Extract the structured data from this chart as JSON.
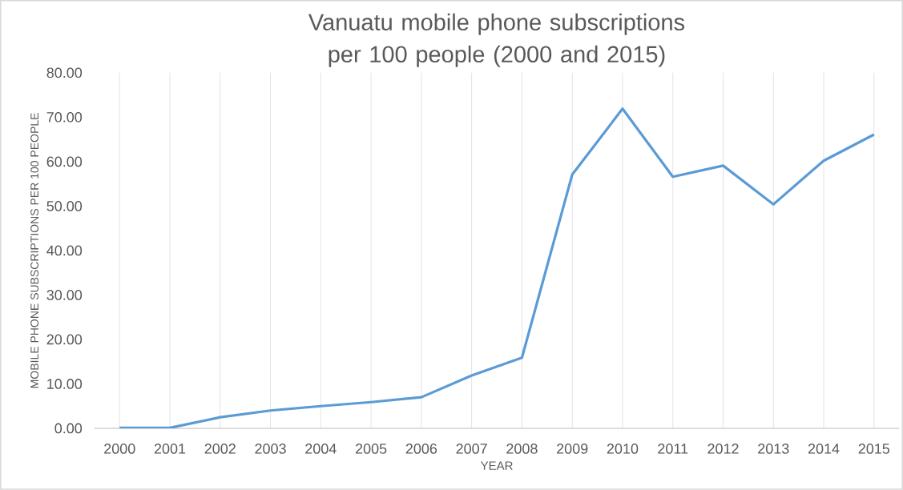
{
  "chart_data": {
    "type": "line",
    "title": "Vanuatu mobile phone subscriptions per 100  people (2000 and 2015)",
    "xlabel": "YEAR",
    "ylabel": "MOBILE PHONE SUBSCRIPTIONS PER 100 PEOPLE",
    "categories": [
      "2000",
      "2001",
      "2002",
      "2003",
      "2004",
      "2005",
      "2006",
      "2007",
      "2008",
      "2009",
      "2010",
      "2011",
      "2012",
      "2013",
      "2014",
      "2015"
    ],
    "series": [
      {
        "color": "#5b9bd5",
        "values": [
          0.1,
          0.1,
          2.5,
          4.0,
          5.0,
          5.9,
          7.0,
          11.9,
          15.9,
          57.1,
          71.9,
          56.6,
          59.1,
          50.4,
          60.2,
          66.1
        ]
      }
    ],
    "ylim": [
      0,
      80
    ],
    "yticks": [
      {
        "value": 0,
        "label": "0.00"
      },
      {
        "value": 10,
        "label": "10.00"
      },
      {
        "value": 20,
        "label": "20.00"
      },
      {
        "value": 30,
        "label": "30.00"
      },
      {
        "value": 40,
        "label": "40.00"
      },
      {
        "value": 50,
        "label": "50.00"
      },
      {
        "value": 60,
        "label": "60.00"
      },
      {
        "value": 70,
        "label": "70.00"
      },
      {
        "value": 80,
        "label": "80.00"
      }
    ],
    "grid": "x",
    "marker": "none",
    "line_style": "solid"
  }
}
